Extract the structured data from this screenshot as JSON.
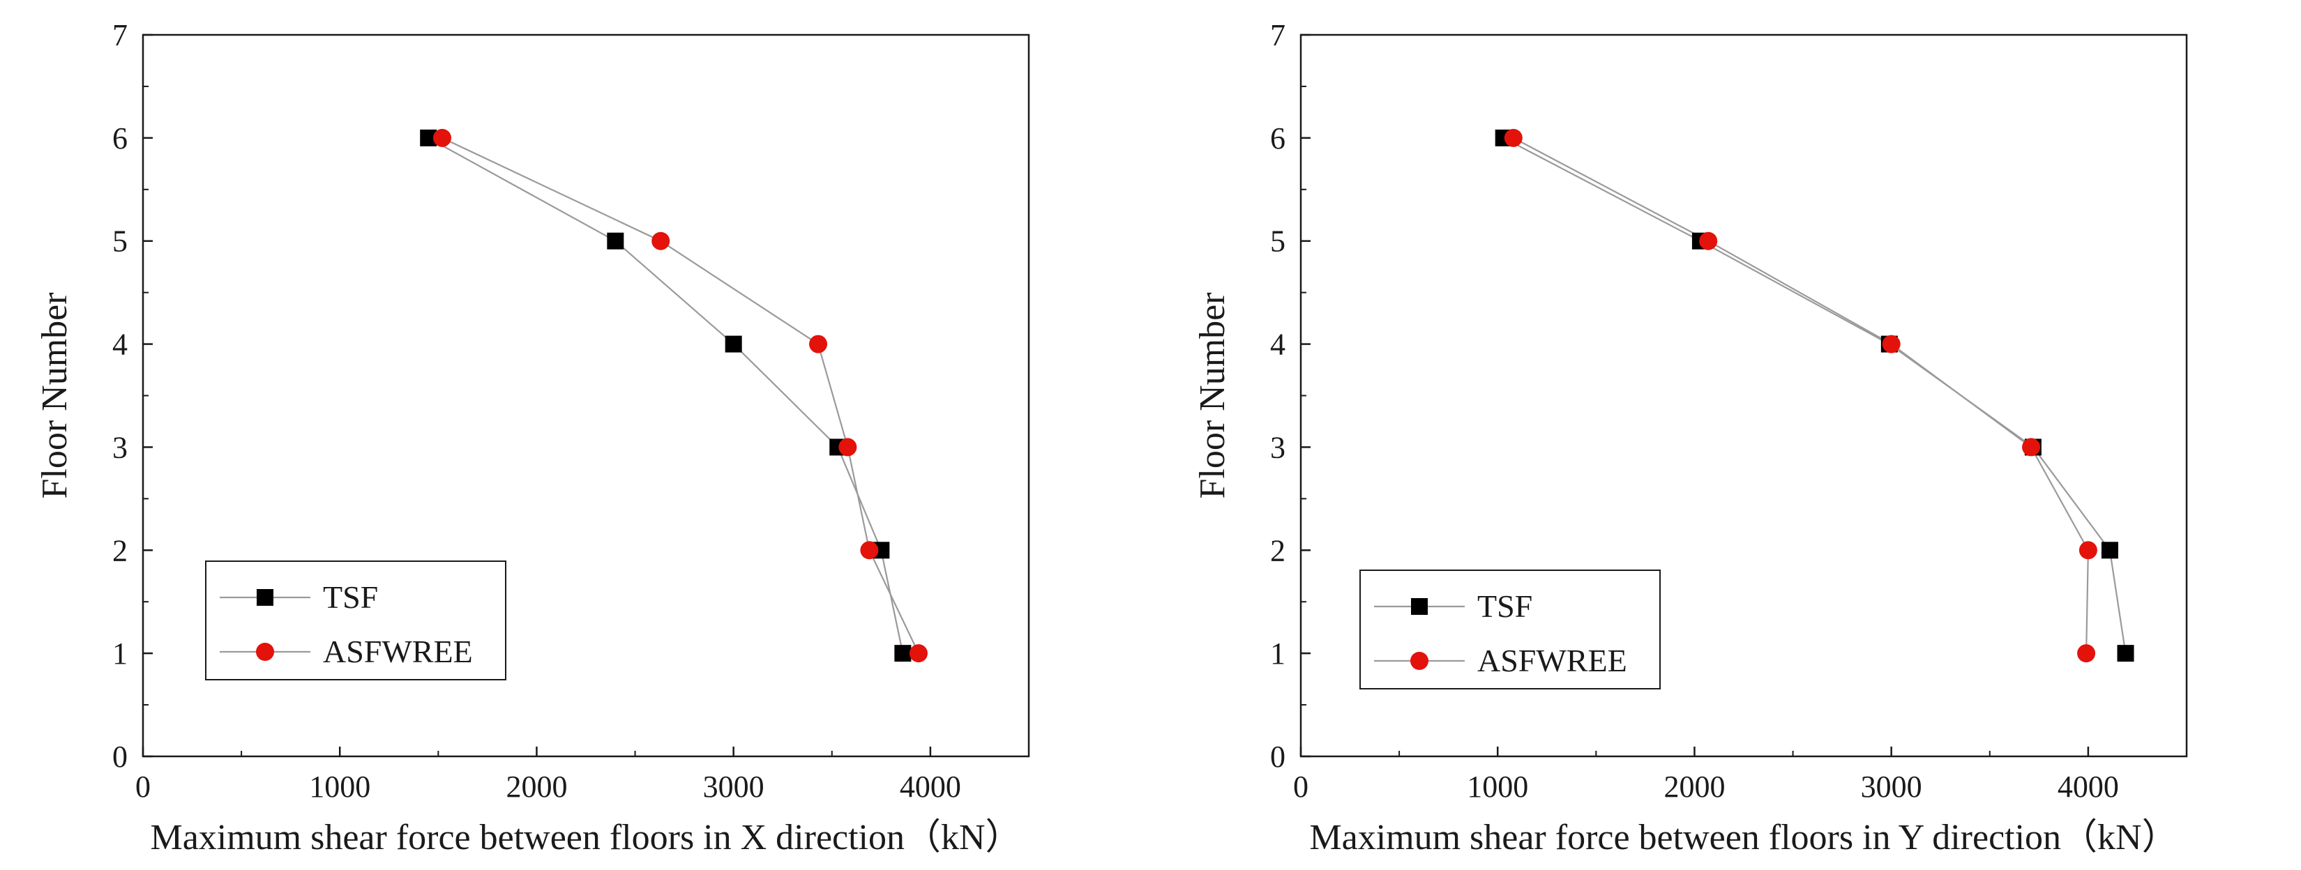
{
  "colors": {
    "tsf": "#000000",
    "asfwree": "#e3120b",
    "line": "#9a9a9a",
    "axis": "#1a1a1a"
  },
  "chart_data": [
    {
      "type": "line",
      "title": "",
      "xlabel": "Maximum shear force between floors in X direction（kN）",
      "ylabel": "Floor Number",
      "xlim": [
        0,
        4500
      ],
      "ylim": [
        0,
        7
      ],
      "xticks": [
        0,
        1000,
        2000,
        3000,
        4000
      ],
      "yticks": [
        0,
        1,
        2,
        3,
        4,
        5,
        6,
        7
      ],
      "legend_position": "bottom-left",
      "series": [
        {
          "name": "TSF",
          "marker": "square",
          "x": [
            3860,
            3750,
            3530,
            3000,
            2400,
            1450
          ],
          "y": [
            1,
            2,
            3,
            4,
            5,
            6
          ]
        },
        {
          "name": "ASFWREE",
          "marker": "circle",
          "x": [
            3940,
            3690,
            3580,
            3430,
            2630,
            1520
          ],
          "y": [
            1,
            2,
            3,
            4,
            5,
            6
          ]
        }
      ]
    },
    {
      "type": "line",
      "title": "",
      "xlabel": "Maximum shear force between floors in Y direction（kN）",
      "ylabel": "Floor Number",
      "xlim": [
        0,
        4500
      ],
      "ylim": [
        0,
        7
      ],
      "xticks": [
        0,
        1000,
        2000,
        3000,
        4000
      ],
      "yticks": [
        0,
        1,
        2,
        3,
        4,
        5,
        6,
        7
      ],
      "legend_position": "bottom-left",
      "series": [
        {
          "name": "TSF",
          "marker": "square",
          "x": [
            4190,
            4110,
            3720,
            2990,
            2030,
            1030
          ],
          "y": [
            1,
            2,
            3,
            4,
            5,
            6
          ]
        },
        {
          "name": "ASFWREE",
          "marker": "circle",
          "x": [
            3990,
            4000,
            3710,
            3000,
            2070,
            1080
          ],
          "y": [
            1,
            2,
            3,
            4,
            5,
            6
          ]
        }
      ]
    }
  ]
}
